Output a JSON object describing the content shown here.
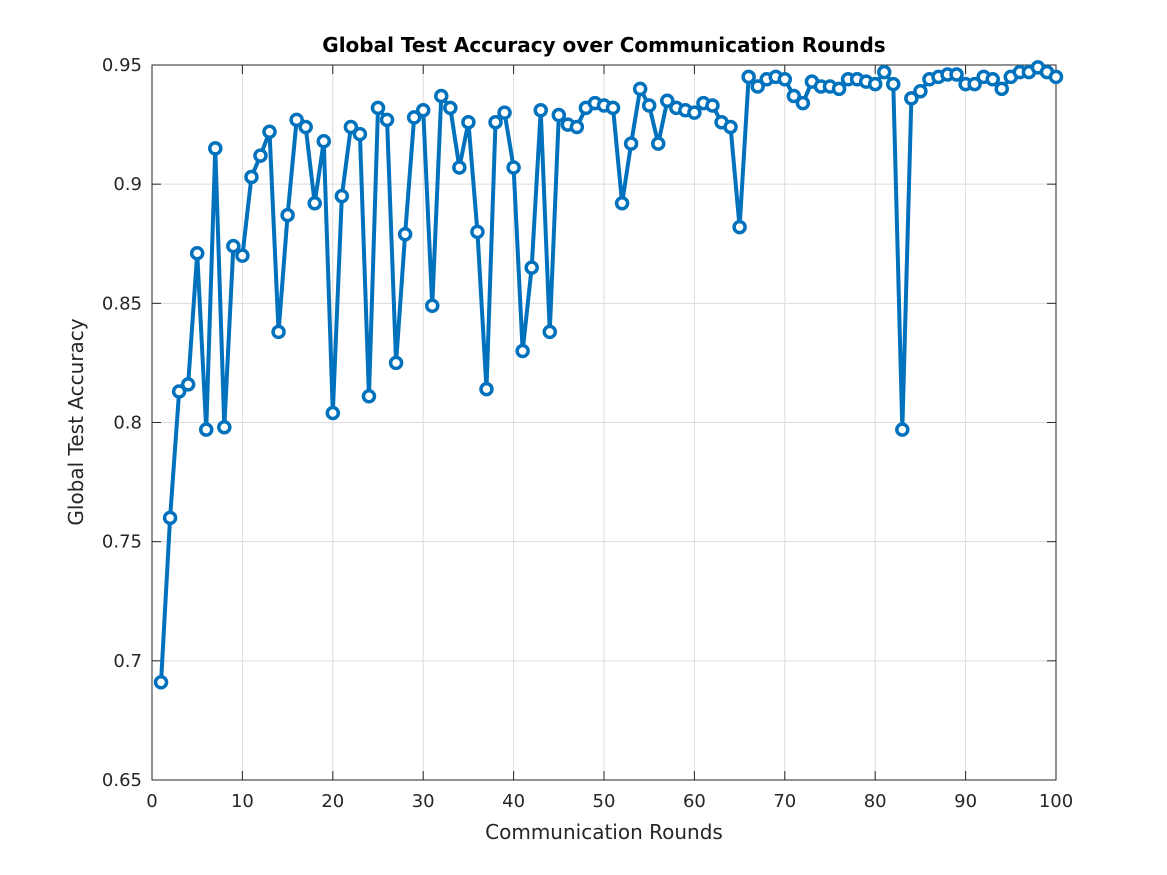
{
  "chart_data": {
    "type": "line",
    "title": "Global Test Accuracy over Communication Rounds",
    "xlabel": "Communication Rounds",
    "ylabel": "Global Test Accuracy",
    "xlim": [
      0,
      100
    ],
    "ylim": [
      0.65,
      0.95
    ],
    "xticks": [
      "0",
      "10",
      "20",
      "30",
      "40",
      "50",
      "60",
      "70",
      "80",
      "90",
      "100"
    ],
    "yticks": [
      "0.65",
      "0.7",
      "0.75",
      "0.8",
      "0.85",
      "0.9",
      "0.95"
    ],
    "grid": true,
    "marker": "circle",
    "color": "#0072BD",
    "series": [
      {
        "x": [
          1,
          2,
          3,
          4,
          5,
          6,
          7,
          8,
          9,
          10,
          11,
          12,
          13,
          14,
          15,
          16,
          17,
          18,
          19,
          20,
          21,
          22,
          23,
          24,
          25,
          26,
          27,
          28,
          29,
          30,
          31,
          32,
          33,
          34,
          35,
          36,
          37,
          38,
          39,
          40,
          41,
          42,
          43,
          44,
          45,
          46,
          47,
          48,
          49,
          50,
          51,
          52,
          53,
          54,
          55,
          56,
          57,
          58,
          59,
          60,
          61,
          62,
          63,
          64,
          65,
          66,
          67,
          68,
          69,
          70,
          71,
          72,
          73,
          74,
          75,
          76,
          77,
          78,
          79,
          80,
          81,
          82,
          83,
          84,
          85,
          86,
          87,
          88,
          89,
          90,
          91,
          92,
          93,
          94,
          95,
          96,
          97,
          98,
          99,
          100
        ],
        "values": [
          0.691,
          0.76,
          0.813,
          0.816,
          0.871,
          0.797,
          0.915,
          0.798,
          0.874,
          0.87,
          0.903,
          0.912,
          0.922,
          0.838,
          0.887,
          0.927,
          0.924,
          0.892,
          0.918,
          0.804,
          0.895,
          0.924,
          0.921,
          0.811,
          0.932,
          0.927,
          0.825,
          0.879,
          0.928,
          0.931,
          0.849,
          0.937,
          0.932,
          0.907,
          0.926,
          0.88,
          0.814,
          0.926,
          0.93,
          0.907,
          0.83,
          0.865,
          0.931,
          0.838,
          0.929,
          0.925,
          0.924,
          0.932,
          0.934,
          0.933,
          0.932,
          0.892,
          0.917,
          0.94,
          0.933,
          0.917,
          0.935,
          0.932,
          0.931,
          0.93,
          0.934,
          0.933,
          0.926,
          0.924,
          0.882,
          0.945,
          0.941,
          0.944,
          0.945,
          0.944,
          0.937,
          0.934,
          0.943,
          0.941,
          0.941,
          0.94,
          0.944,
          0.944,
          0.943,
          0.942,
          0.947,
          0.942,
          0.797,
          0.936,
          0.939,
          0.944,
          0.945,
          0.946,
          0.946,
          0.942,
          0.942,
          0.945,
          0.944,
          0.94,
          0.945,
          0.947,
          0.947,
          0.949,
          0.947,
          0.945
        ]
      }
    ]
  }
}
